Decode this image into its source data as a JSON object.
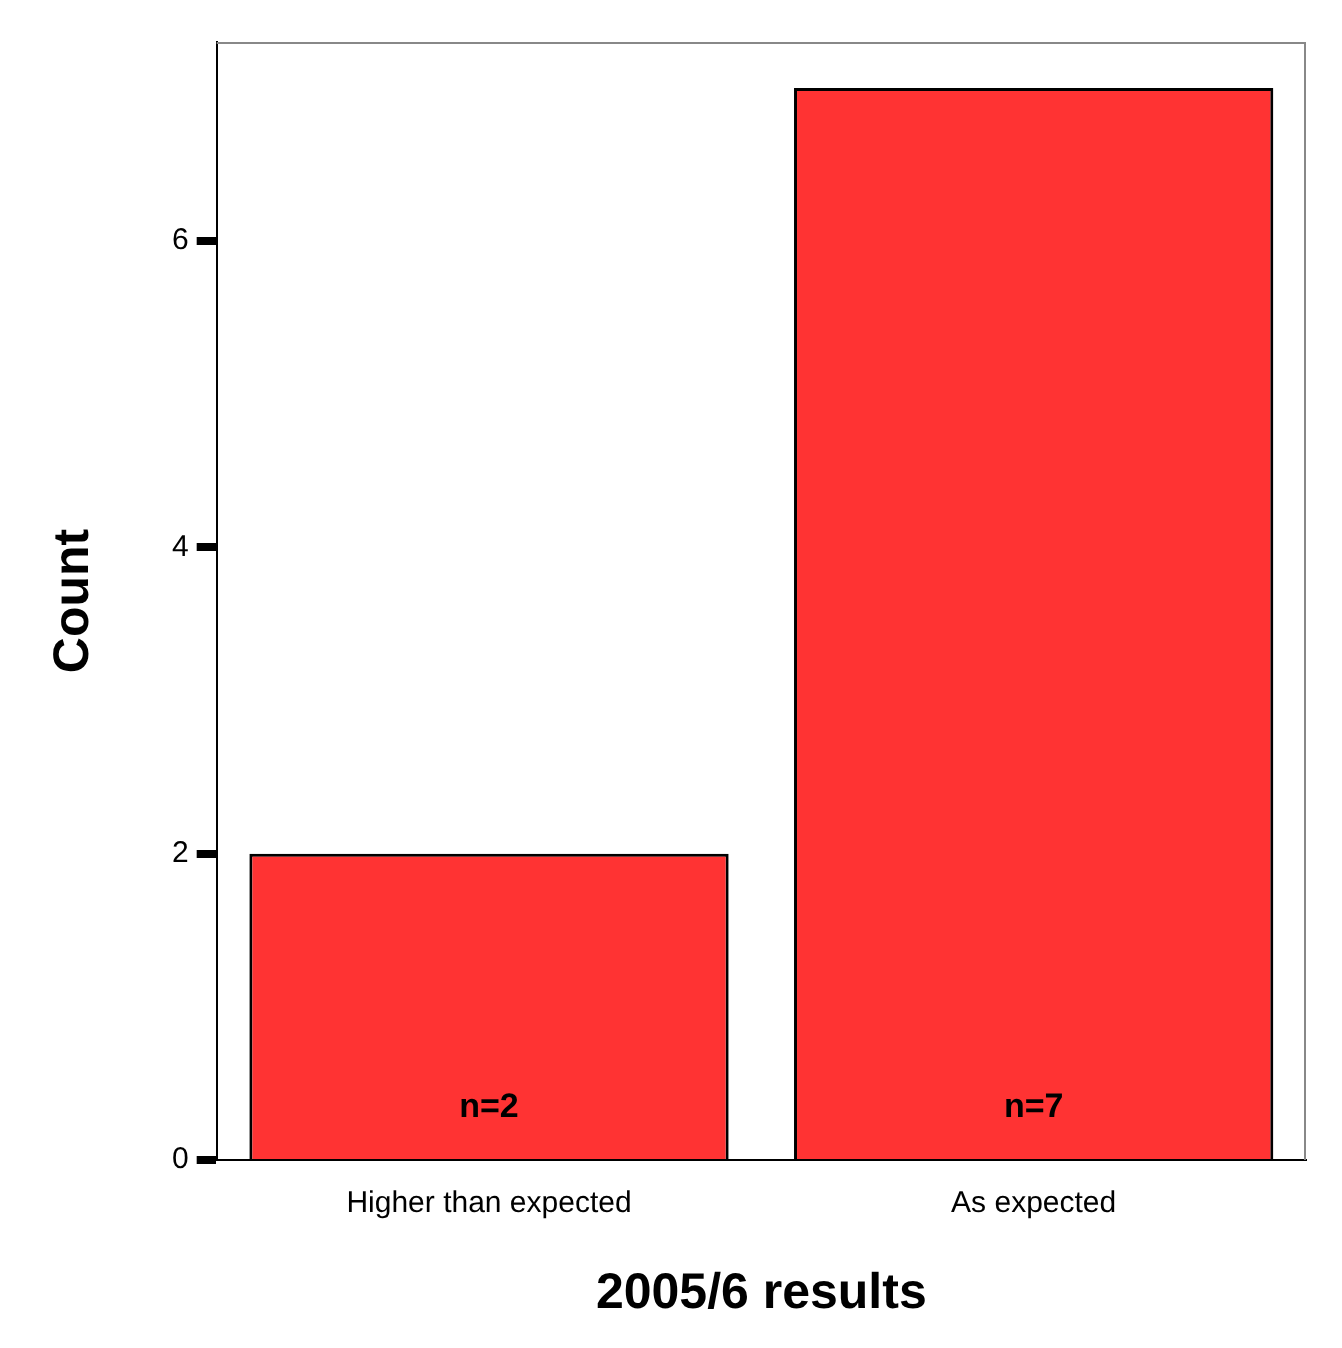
{
  "chart_data": {
    "type": "bar",
    "xlabel": "2005/6 results",
    "ylabel": "Count",
    "categories": [
      "Higher than expected",
      "As expected"
    ],
    "values": [
      2,
      7
    ],
    "color": "#ff3333",
    "value_labels": [
      "n=2",
      "n=7"
    ],
    "ylim": [
      0,
      7.3
    ],
    "yticks": [
      0,
      2,
      4,
      6
    ],
    "grid": false,
    "legend": false
  }
}
